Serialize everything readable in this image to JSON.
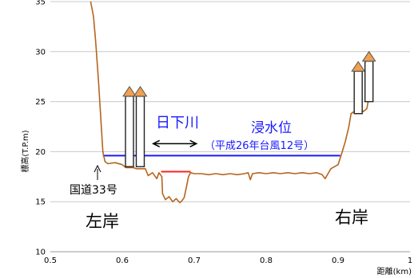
{
  "chart_data": {
    "type": "line",
    "xlabel": "距離(km)",
    "ylabel": "標高(T.P.m)",
    "xlim": [
      0.5,
      1.0
    ],
    "ylim": [
      10,
      35
    ],
    "x_ticks": [
      "0.5",
      "0.6",
      "0.7",
      "0.8",
      "0.9",
      "1"
    ],
    "y_ticks": [
      "10",
      "15",
      "20",
      "25",
      "30",
      "35"
    ],
    "grid": "horizontal",
    "profile": {
      "color": "#b5651d",
      "points": [
        [
          0.556,
          35.0
        ],
        [
          0.56,
          33.5
        ],
        [
          0.563,
          31.0
        ],
        [
          0.567,
          27.0
        ],
        [
          0.57,
          23.5
        ],
        [
          0.573,
          20.0
        ],
        [
          0.576,
          19.0
        ],
        [
          0.58,
          18.8
        ],
        [
          0.59,
          18.9
        ],
        [
          0.6,
          18.7
        ],
        [
          0.605,
          18.4
        ],
        [
          0.61,
          18.4
        ],
        [
          0.615,
          18.4
        ],
        [
          0.62,
          18.3
        ],
        [
          0.625,
          18.3
        ],
        [
          0.632,
          18.3
        ],
        [
          0.636,
          17.6
        ],
        [
          0.642,
          17.9
        ],
        [
          0.648,
          17.3
        ],
        [
          0.651,
          17.9
        ],
        [
          0.655,
          17.5
        ],
        [
          0.656,
          15.8
        ],
        [
          0.66,
          15.2
        ],
        [
          0.665,
          15.5
        ],
        [
          0.67,
          15.0
        ],
        [
          0.675,
          15.3
        ],
        [
          0.68,
          14.9
        ],
        [
          0.683,
          15.1
        ],
        [
          0.686,
          15.4
        ],
        [
          0.689,
          16.4
        ],
        [
          0.692,
          17.5
        ],
        [
          0.695,
          17.9
        ],
        [
          0.7,
          17.8
        ],
        [
          0.71,
          17.8
        ],
        [
          0.72,
          17.7
        ],
        [
          0.73,
          17.8
        ],
        [
          0.74,
          17.7
        ],
        [
          0.75,
          17.8
        ],
        [
          0.76,
          17.7
        ],
        [
          0.77,
          17.8
        ],
        [
          0.775,
          17.9
        ],
        [
          0.778,
          17.2
        ],
        [
          0.781,
          17.8
        ],
        [
          0.79,
          17.9
        ],
        [
          0.8,
          17.8
        ],
        [
          0.81,
          17.9
        ],
        [
          0.82,
          17.8
        ],
        [
          0.83,
          17.9
        ],
        [
          0.84,
          17.8
        ],
        [
          0.85,
          17.9
        ],
        [
          0.86,
          17.8
        ],
        [
          0.87,
          17.9
        ],
        [
          0.878,
          17.7
        ],
        [
          0.882,
          17.3
        ],
        [
          0.886,
          17.8
        ],
        [
          0.89,
          18.3
        ],
        [
          0.9,
          18.7
        ],
        [
          0.905,
          19.8
        ],
        [
          0.91,
          21.0
        ],
        [
          0.915,
          22.5
        ],
        [
          0.918,
          23.8
        ],
        [
          0.922,
          24.0
        ],
        [
          0.927,
          24.4
        ],
        [
          0.93,
          24.5
        ],
        [
          0.935,
          24.0
        ],
        [
          0.94,
          24.3
        ],
        [
          0.943,
          25.5
        ],
        [
          0.947,
          25.5
        ]
      ]
    },
    "flood_level": {
      "label": "浸水位",
      "sublabel": "（平成26年台風12号）",
      "y": 19.6,
      "x": [
        0.573,
        0.903
      ],
      "color": "#1a1aff"
    },
    "river_water": {
      "label": "日下川",
      "y": 18.0,
      "x": [
        0.654,
        0.695
      ],
      "color": "#ff2020"
    },
    "river_span": {
      "x": [
        0.643,
        0.703
      ],
      "y": 20.8
    },
    "road": {
      "label": "国道33号"
    },
    "left_bank": {
      "label": "左岸"
    },
    "right_bank": {
      "label": "右岸"
    },
    "poles": [
      {
        "x": 0.61,
        "bottom": 18.5,
        "top": 26.5
      },
      {
        "x": 0.625,
        "bottom": 18.5,
        "top": 26.5
      },
      {
        "x": 0.928,
        "bottom": 23.8,
        "top": 29.0
      },
      {
        "x": 0.943,
        "bottom": 25.0,
        "top": 30.0
      }
    ],
    "pole_colors": {
      "cone": "#f0a050",
      "cone_stroke": "#555555",
      "shaft": "#ffffff",
      "shaft_stroke": "#222222"
    }
  }
}
